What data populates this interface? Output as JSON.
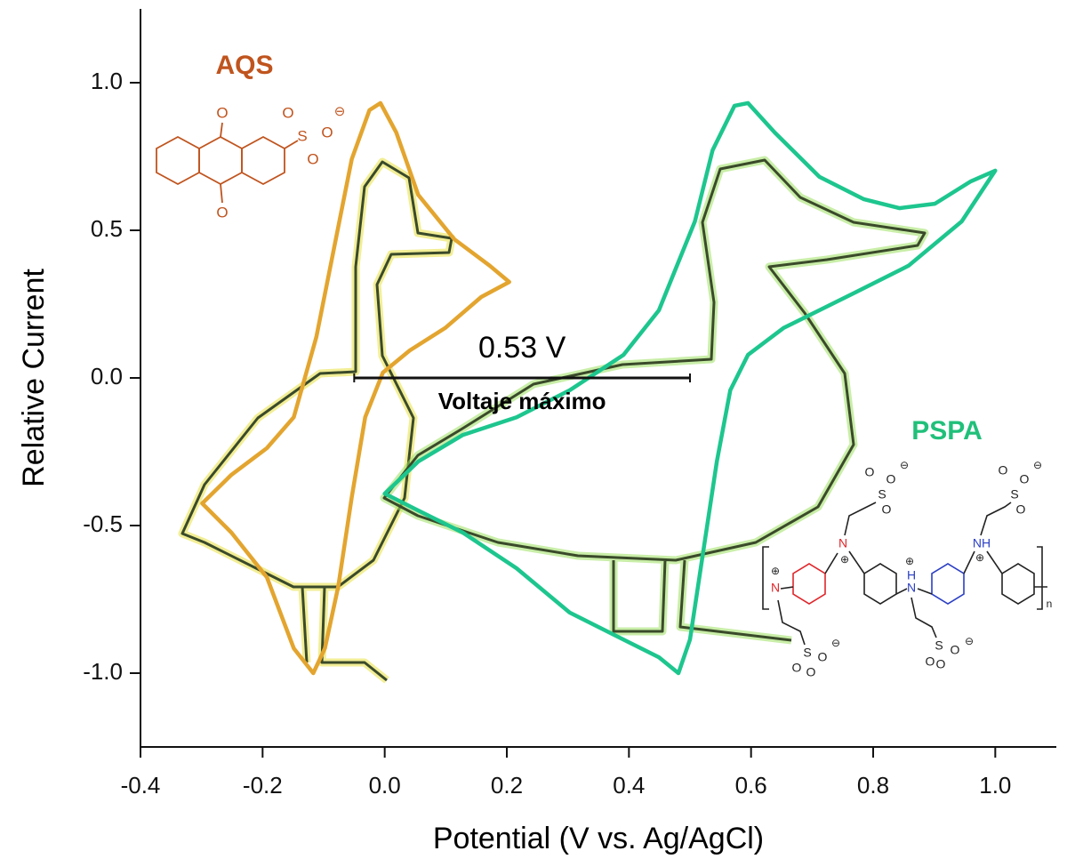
{
  "chart_data": {
    "type": "line",
    "x_label": "Potential (V vs. Ag/AgCl)",
    "y_label": "Relative Current",
    "xlim": [
      -0.4,
      1.1
    ],
    "ylim": [
      -1.25,
      1.25
    ],
    "xticks": [
      -0.4,
      -0.2,
      {
        "value": 0,
        "label": "0.0"
      },
      0.2,
      0.4,
      0.6,
      0.8,
      {
        "value": 1,
        "label": "1.0"
      }
    ],
    "yticks": [
      {
        "value": -1,
        "label": "-1.0"
      },
      -0.5,
      {
        "value": 0,
        "label": "0.0"
      },
      0.5,
      {
        "value": 1,
        "label": "1.0"
      }
    ],
    "series": [
      {
        "name": "AQS",
        "color": "#e3a52f",
        "label_color": "#c0541e",
        "x": [
          -0.299,
          -0.251,
          -0.193,
          -0.149,
          -0.112,
          -0.083,
          -0.054,
          -0.025,
          -0.007,
          0.019,
          0.055,
          0.114,
          0.172,
          0.204,
          0.158,
          0.099,
          0.041,
          -0.003,
          -0.032,
          -0.054,
          -0.076,
          -0.098,
          -0.117,
          -0.149,
          -0.193,
          -0.251
        ],
        "values": [
          -0.425,
          -0.328,
          -0.238,
          -0.133,
          0.139,
          0.44,
          0.741,
          0.907,
          0.931,
          0.831,
          0.62,
          0.47,
          0.38,
          0.325,
          0.274,
          0.169,
          0.093,
          0.018,
          -0.133,
          -0.404,
          -0.705,
          -0.916,
          -1.0,
          -0.916,
          -0.675,
          -0.524
        ]
      },
      {
        "name": "PSPA",
        "color": "#1dc68e",
        "label_color": "#20c07a",
        "x": [
          0,
          0.055,
          0.128,
          0.216,
          0.303,
          0.391,
          0.449,
          0.508,
          0.537,
          0.573,
          0.595,
          0.639,
          0.712,
          0.785,
          0.843,
          0.901,
          0.96,
          1.0,
          0.945,
          0.858,
          0.77,
          0.653,
          0.595,
          0.566,
          0.544,
          0.522,
          0.5,
          0.481,
          0.449,
          0.391,
          0.303,
          0.216,
          0.128,
          0.055
        ],
        "values": [
          -0.392,
          -0.283,
          -0.193,
          -0.133,
          -0.042,
          0.078,
          0.229,
          0.53,
          0.771,
          0.922,
          0.931,
          0.831,
          0.681,
          0.605,
          0.575,
          0.59,
          0.666,
          0.702,
          0.53,
          0.38,
          0.289,
          0.169,
          0.078,
          -0.042,
          -0.283,
          -0.584,
          -0.886,
          -1.0,
          -0.946,
          -0.886,
          -0.795,
          -0.645,
          -0.524,
          -0.449
        ]
      }
    ],
    "annotation": {
      "text": "0.53 V",
      "caption": "Voltaje máximo",
      "x_span": [
        -0.05,
        0.5
      ],
      "y": 0
    },
    "structures": {
      "aqs": [
        "O",
        "O",
        "O",
        "S",
        "O",
        "O",
        "⊖"
      ],
      "pspa": [
        "N",
        "⊕",
        "N",
        "⊕",
        "H",
        "N",
        "⊕",
        "NH",
        "⊕",
        "S",
        "O",
        "O",
        "O",
        "⊖",
        "S",
        "O",
        "O",
        "O",
        "⊖",
        "S",
        "O",
        "O",
        "O",
        "⊖",
        "S",
        "O",
        "O",
        "O",
        "⊖",
        "n"
      ]
    }
  }
}
